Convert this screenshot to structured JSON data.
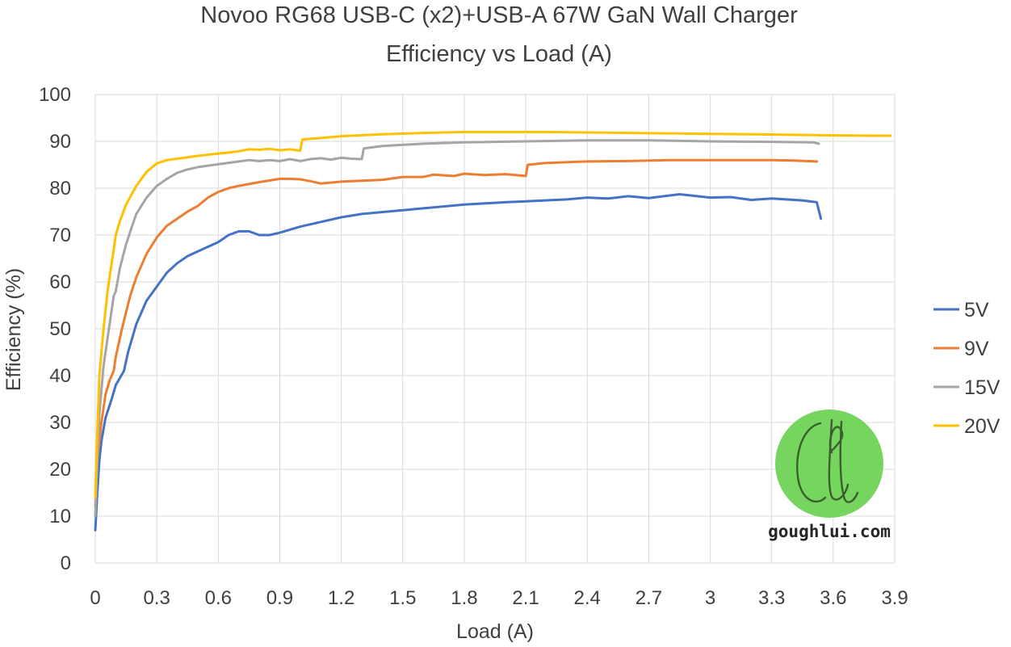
{
  "chart_data": {
    "type": "line",
    "title": "Novoo RG68 USB-C (x2)+USB-A 67W GaN Wall Charger",
    "subtitle": "Efficiency vs Load (A)",
    "xlabel": "Load (A)",
    "ylabel": "Efficiency (%)",
    "xlim": [
      0,
      3.9
    ],
    "ylim": [
      0,
      100
    ],
    "x_ticks": [
      "0",
      "0.3",
      "0.6",
      "0.9",
      "1.2",
      "1.5",
      "1.8",
      "2.1",
      "2.4",
      "2.7",
      "3",
      "3.3",
      "3.6",
      "3.9"
    ],
    "y_ticks": [
      "0",
      "10",
      "20",
      "30",
      "40",
      "50",
      "60",
      "70",
      "80",
      "90",
      "100"
    ],
    "grid": true,
    "legend_position": "right",
    "series": [
      {
        "name": "5V",
        "color": "#4472C4",
        "points": [
          [
            0,
            7
          ],
          [
            0.01,
            15
          ],
          [
            0.02,
            22
          ],
          [
            0.03,
            26
          ],
          [
            0.05,
            31
          ],
          [
            0.08,
            35
          ],
          [
            0.1,
            38
          ],
          [
            0.14,
            41
          ],
          [
            0.16,
            45
          ],
          [
            0.2,
            51
          ],
          [
            0.25,
            56
          ],
          [
            0.3,
            59
          ],
          [
            0.35,
            62
          ],
          [
            0.4,
            64
          ],
          [
            0.45,
            65.5
          ],
          [
            0.5,
            66.5
          ],
          [
            0.55,
            67.5
          ],
          [
            0.6,
            68.5
          ],
          [
            0.65,
            70
          ],
          [
            0.7,
            70.8
          ],
          [
            0.75,
            70.8
          ],
          [
            0.8,
            70
          ],
          [
            0.85,
            70
          ],
          [
            0.9,
            70.5
          ],
          [
            1.0,
            71.8
          ],
          [
            1.1,
            72.8
          ],
          [
            1.2,
            73.8
          ],
          [
            1.3,
            74.5
          ],
          [
            1.5,
            75.3
          ],
          [
            1.6,
            75.7
          ],
          [
            1.8,
            76.5
          ],
          [
            2.0,
            77.0
          ],
          [
            2.1,
            77.2
          ],
          [
            2.3,
            77.6
          ],
          [
            2.4,
            78.0
          ],
          [
            2.5,
            77.8
          ],
          [
            2.6,
            78.3
          ],
          [
            2.7,
            77.9
          ],
          [
            2.85,
            78.7
          ],
          [
            3.0,
            78.0
          ],
          [
            3.1,
            78.1
          ],
          [
            3.2,
            77.5
          ],
          [
            3.3,
            77.8
          ],
          [
            3.45,
            77.4
          ],
          [
            3.52,
            77.0
          ],
          [
            3.54,
            73.5
          ]
        ]
      },
      {
        "name": "9V",
        "color": "#ED7D31",
        "points": [
          [
            0,
            12
          ],
          [
            0.01,
            22
          ],
          [
            0.03,
            30
          ],
          [
            0.05,
            36
          ],
          [
            0.07,
            39
          ],
          [
            0.09,
            41
          ],
          [
            0.1,
            44
          ],
          [
            0.13,
            50
          ],
          [
            0.17,
            57
          ],
          [
            0.2,
            61
          ],
          [
            0.25,
            66
          ],
          [
            0.3,
            69.5
          ],
          [
            0.35,
            72
          ],
          [
            0.4,
            73.5
          ],
          [
            0.45,
            75
          ],
          [
            0.5,
            76.2
          ],
          [
            0.55,
            78
          ],
          [
            0.6,
            79.2
          ],
          [
            0.65,
            80
          ],
          [
            0.7,
            80.5
          ],
          [
            0.8,
            81.3
          ],
          [
            0.9,
            82
          ],
          [
            0.95,
            82
          ],
          [
            1.0,
            81.9
          ],
          [
            1.05,
            81.5
          ],
          [
            1.1,
            81
          ],
          [
            1.2,
            81.4
          ],
          [
            1.3,
            81.6
          ],
          [
            1.4,
            81.8
          ],
          [
            1.5,
            82.4
          ],
          [
            1.6,
            82.4
          ],
          [
            1.65,
            82.9
          ],
          [
            1.75,
            82.6
          ],
          [
            1.8,
            83.1
          ],
          [
            1.9,
            82.8
          ],
          [
            2.0,
            83
          ],
          [
            2.1,
            82.6
          ],
          [
            2.11,
            85
          ],
          [
            2.2,
            85.4
          ],
          [
            2.4,
            85.7
          ],
          [
            2.6,
            85.8
          ],
          [
            2.8,
            86.0
          ],
          [
            3.0,
            86.0
          ],
          [
            3.2,
            86.0
          ],
          [
            3.3,
            86.0
          ],
          [
            3.4,
            85.9
          ],
          [
            3.52,
            85.7
          ]
        ]
      },
      {
        "name": "15V",
        "color": "#A5A5A5",
        "points": [
          [
            0,
            10
          ],
          [
            0.01,
            22
          ],
          [
            0.02,
            32
          ],
          [
            0.04,
            42
          ],
          [
            0.06,
            48
          ],
          [
            0.08,
            54
          ],
          [
            0.09,
            57
          ],
          [
            0.1,
            58
          ],
          [
            0.12,
            63
          ],
          [
            0.15,
            68
          ],
          [
            0.18,
            72
          ],
          [
            0.2,
            74.5
          ],
          [
            0.25,
            78
          ],
          [
            0.3,
            80.5
          ],
          [
            0.35,
            82
          ],
          [
            0.4,
            83.3
          ],
          [
            0.45,
            84
          ],
          [
            0.5,
            84.5
          ],
          [
            0.6,
            85.1
          ],
          [
            0.7,
            85.7
          ],
          [
            0.75,
            86.0
          ],
          [
            0.8,
            85.8
          ],
          [
            0.85,
            86.0
          ],
          [
            0.9,
            85.8
          ],
          [
            0.95,
            86.2
          ],
          [
            1.0,
            85.8
          ],
          [
            1.05,
            86.2
          ],
          [
            1.1,
            86.4
          ],
          [
            1.15,
            86.1
          ],
          [
            1.2,
            86.5
          ],
          [
            1.25,
            86.3
          ],
          [
            1.3,
            86.2
          ],
          [
            1.31,
            88.5
          ],
          [
            1.4,
            89
          ],
          [
            1.6,
            89.5
          ],
          [
            1.8,
            89.8
          ],
          [
            2.1,
            90
          ],
          [
            2.4,
            90.2
          ],
          [
            2.7,
            90.2
          ],
          [
            3.0,
            90.0
          ],
          [
            3.3,
            89.9
          ],
          [
            3.5,
            89.8
          ],
          [
            3.53,
            89.5
          ]
        ]
      },
      {
        "name": "20V",
        "color": "#FFC000",
        "points": [
          [
            0,
            14
          ],
          [
            0.01,
            28
          ],
          [
            0.02,
            40
          ],
          [
            0.04,
            50
          ],
          [
            0.06,
            58
          ],
          [
            0.08,
            64
          ],
          [
            0.1,
            70
          ],
          [
            0.12,
            73
          ],
          [
            0.15,
            76.5
          ],
          [
            0.2,
            80.5
          ],
          [
            0.25,
            83.5
          ],
          [
            0.3,
            85.3
          ],
          [
            0.35,
            86
          ],
          [
            0.4,
            86.3
          ],
          [
            0.5,
            86.9
          ],
          [
            0.6,
            87.4
          ],
          [
            0.65,
            87.6
          ],
          [
            0.7,
            87.9
          ],
          [
            0.75,
            88.3
          ],
          [
            0.8,
            88.2
          ],
          [
            0.85,
            88.4
          ],
          [
            0.9,
            88.1
          ],
          [
            0.95,
            88.3
          ],
          [
            1.0,
            88
          ],
          [
            1.01,
            90.4
          ],
          [
            1.1,
            90.7
          ],
          [
            1.2,
            91.1
          ],
          [
            1.4,
            91.5
          ],
          [
            1.6,
            91.8
          ],
          [
            1.8,
            92.0
          ],
          [
            2.0,
            92.0
          ],
          [
            2.2,
            92.0
          ],
          [
            2.4,
            91.9
          ],
          [
            2.6,
            91.8
          ],
          [
            2.8,
            91.7
          ],
          [
            3.0,
            91.6
          ],
          [
            3.2,
            91.5
          ],
          [
            3.4,
            91.4
          ],
          [
            3.6,
            91.3
          ],
          [
            3.8,
            91.2
          ],
          [
            3.88,
            91.2
          ]
        ]
      }
    ]
  },
  "watermark": {
    "text": "goughlui.com",
    "logo_color": "#76D55F"
  }
}
